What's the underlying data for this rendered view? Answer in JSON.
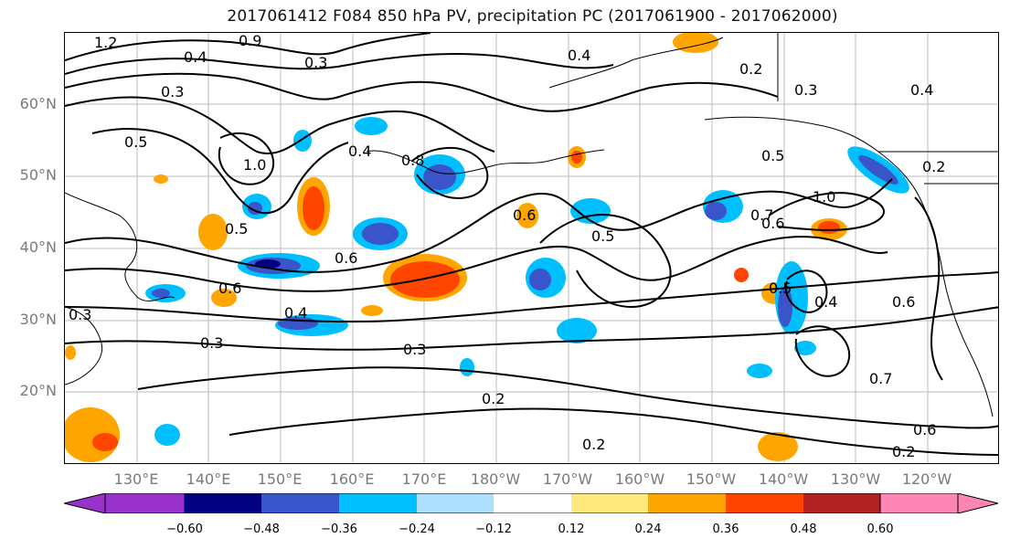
{
  "title": "2017061412 F084 850 hPa PV, precipitation PC (2017061900 - 2017062000)",
  "lat_labels": [
    "60°N",
    "50°N",
    "40°N",
    "30°N",
    "20°N"
  ],
  "lon_labels": [
    "130°E",
    "140°E",
    "150°E",
    "160°E",
    "170°E",
    "180°W",
    "170°W",
    "160°W",
    "150°W",
    "140°W",
    "130°W",
    "120°W"
  ],
  "contour_labels": [
    "1.2",
    "0.4",
    "0.3",
    "0.9",
    "0.4",
    "0.2",
    "0.3",
    "0.4",
    "0.5",
    "1.0",
    "0.4",
    "0.8",
    "0.6",
    "0.5",
    "0.2",
    "1.0",
    "0.7",
    "0.6",
    "0.5",
    "0.6",
    "0.3",
    "0.5",
    "0.4",
    "0.6",
    "0.7",
    "0.6",
    "0.2",
    "0.3",
    "0.2",
    "0.2",
    "0.5",
    "0.4",
    "0.3",
    "0.6",
    "0.3"
  ],
  "colorbar": {
    "ticks": [
      "−0.60",
      "−0.48",
      "−0.36",
      "−0.24",
      "−0.12",
      "0.12",
      "0.24",
      "0.36",
      "0.48",
      "0.60"
    ],
    "colors": [
      "#9932CC",
      "#000080",
      "#3A54C9",
      "#00BFFF",
      "#ADDFFF",
      "#FFFFFF",
      "#FFE87C",
      "#FFA500",
      "#FF4500",
      "#B22222",
      "#FF86B4"
    ]
  }
}
